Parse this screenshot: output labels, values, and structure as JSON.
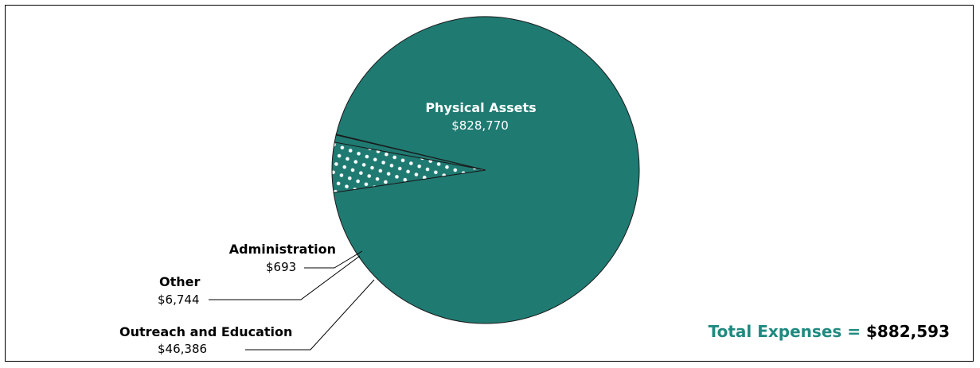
{
  "chart_data": {
    "type": "pie",
    "slices": [
      {
        "label": "Physical Assets",
        "value_text": "$828,770",
        "value": 828770,
        "pattern": "solid"
      },
      {
        "label": "Outreach and Education",
        "value_text": "$46,386",
        "value": 46386,
        "pattern": "dots"
      },
      {
        "label": "Other",
        "value_text": "$6,744",
        "value": 6744,
        "pattern": "solid"
      },
      {
        "label": "Administration",
        "value_text": "$693",
        "value": 693,
        "pattern": "solid"
      }
    ],
    "total": {
      "label": "Total Expenses",
      "equals": "=",
      "value_text": "$882,593"
    },
    "colors": {
      "main": "#1f7a72",
      "light": "#6fb8b0",
      "outline": "#1a1a1a",
      "total_text": "#1f8a80"
    }
  }
}
